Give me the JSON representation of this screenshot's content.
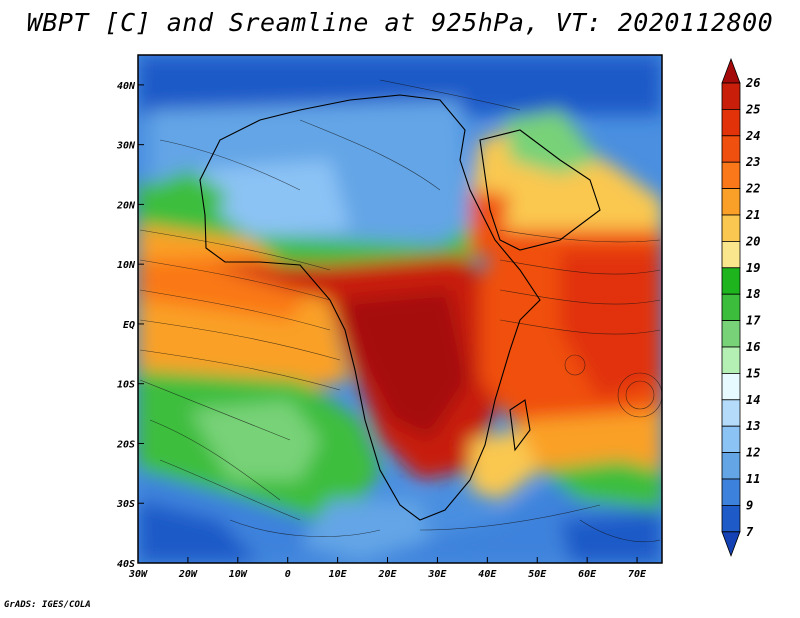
{
  "title": "WBPT [C] and Sreamline at 925hPa, VT: 2020112800",
  "credit": "GrADS: IGES/COLA",
  "map": {
    "lon_labels": [
      "30W",
      "20W",
      "10W",
      "0",
      "10E",
      "20E",
      "30E",
      "40E",
      "50E",
      "60E",
      "70E"
    ],
    "lat_labels": [
      "40N",
      "30N",
      "20N",
      "10N",
      "EQ",
      "10S",
      "20S",
      "30S",
      "40S"
    ],
    "lon_range": [
      -30,
      75
    ],
    "lat_range": [
      -40,
      45
    ]
  },
  "colorbar": {
    "labels": [
      "26",
      "25",
      "24",
      "23",
      "22",
      "21",
      "20",
      "19",
      "18",
      "17",
      "16",
      "15",
      "14",
      "13",
      "12",
      "11",
      "9",
      "7"
    ],
    "colors": [
      "#a50a0a",
      "#c81e0a",
      "#e1320a",
      "#f0500f",
      "#fa7819",
      "#faa028",
      "#fac850",
      "#fae68c",
      "#1eb41e",
      "#3cbe3c",
      "#78d278",
      "#b4f0b4",
      "#e6faff",
      "#b4dcfa",
      "#8cc3f5",
      "#64a5e6",
      "#3c82dc",
      "#1e5ac8",
      "#1441b4"
    ]
  }
}
